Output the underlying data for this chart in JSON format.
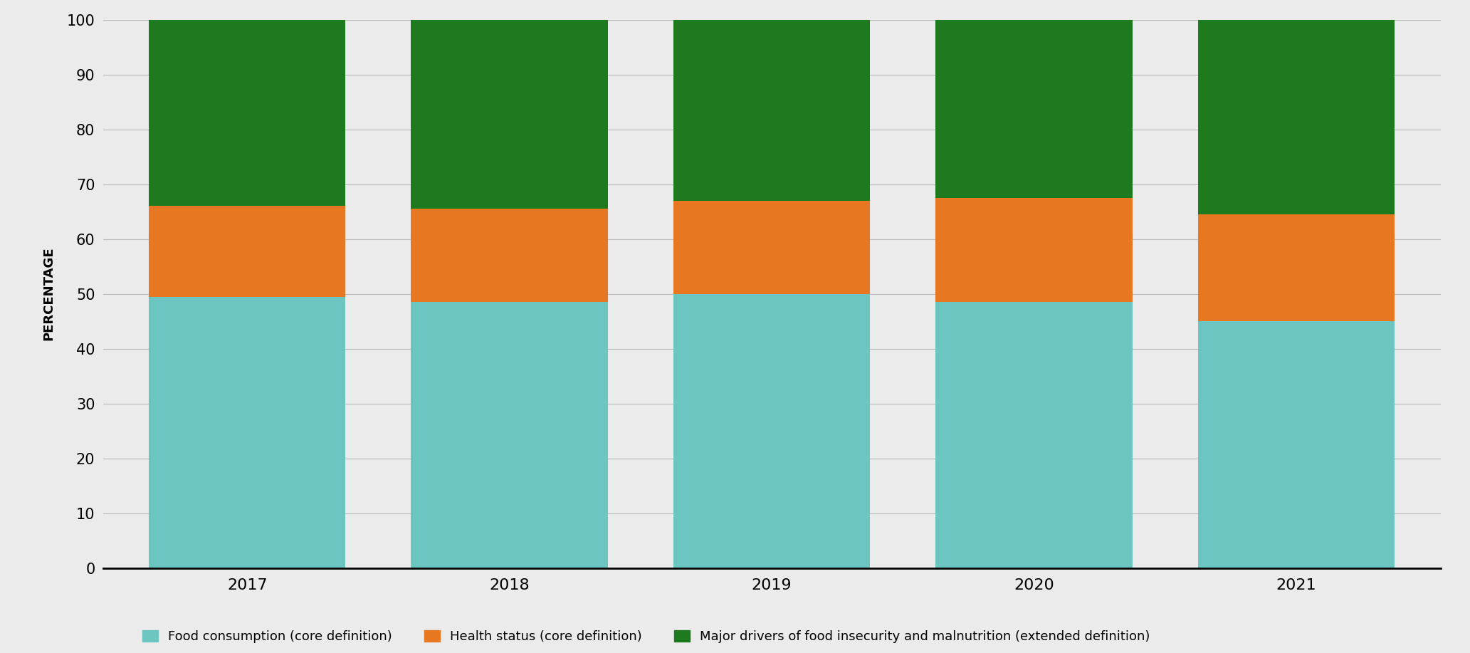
{
  "years": [
    "2017",
    "2018",
    "2019",
    "2020",
    "2021"
  ],
  "food_consumption": [
    49.5,
    48.5,
    50.0,
    48.5,
    45.0
  ],
  "health_status": [
    16.5,
    17.0,
    17.0,
    19.0,
    19.5
  ],
  "major_drivers": [
    34.0,
    34.5,
    33.0,
    32.5,
    35.5
  ],
  "colors": {
    "food_consumption": "#6CC5C1",
    "health_status": "#E87722",
    "major_drivers": "#1E7A1E"
  },
  "legend_labels": [
    "Food consumption (core definition)",
    "Health status (core definition)",
    "Major drivers of food insecurity and malnutrition (extended definition)"
  ],
  "ylabel": "PERCENTAGE",
  "ylim": [
    0,
    100
  ],
  "yticks": [
    0,
    10,
    20,
    30,
    40,
    50,
    60,
    70,
    80,
    90,
    100
  ],
  "background_color": "#EBEBEB",
  "bar_width": 0.75,
  "grid_color": "#BBBBBB",
  "bottom_line_color": "#000000"
}
